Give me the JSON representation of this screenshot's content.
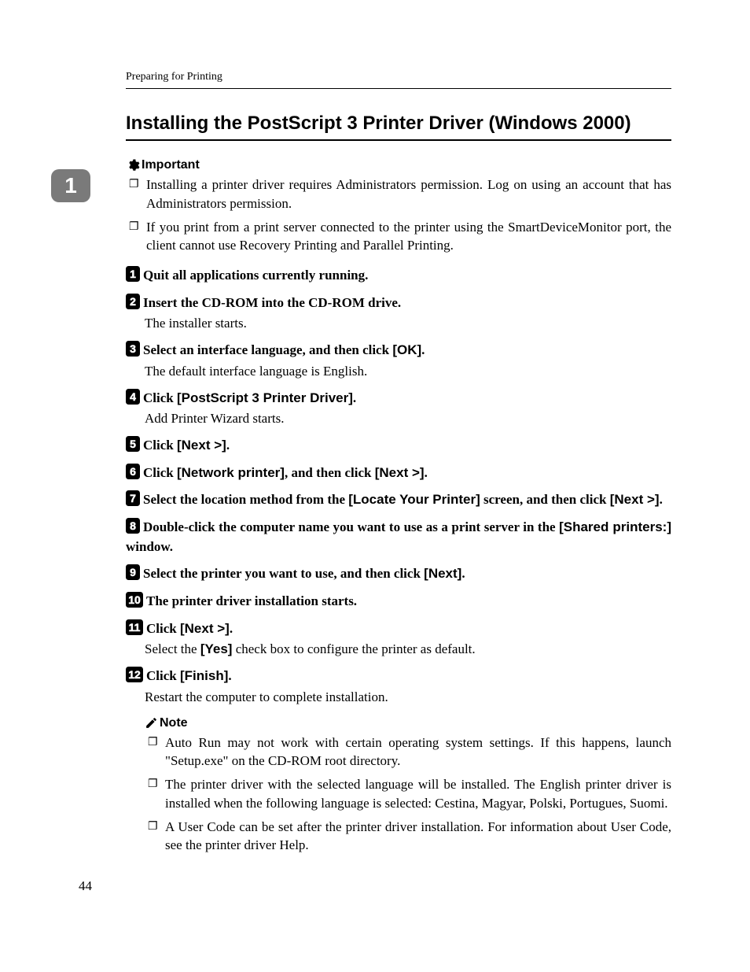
{
  "colors": {
    "tab_bg": "#7a7a7a",
    "tab_fg": "#ffffff",
    "text": "#000000",
    "background": "#ffffff"
  },
  "fonts": {
    "body_family": "Georgia, Times New Roman, serif",
    "ui_family": "Arial, Helvetica, sans-serif",
    "body_size_pt": 12,
    "title_size_pt": 18
  },
  "header": {
    "running": "Preparing for Printing",
    "chapter_number": "1",
    "title": "Installing the PostScript 3 Printer Driver (Windows 2000)"
  },
  "important": {
    "label": "Important",
    "items": [
      "Installing a printer driver requires Administrators permission. Log on using an account that has Administrators permission.",
      "If you print from a print server connected to the printer using the SmartDeviceMonitor port, the client cannot use Recovery Printing and Parallel Printing."
    ]
  },
  "steps": [
    {
      "n": "1",
      "parts": [
        {
          "t": "Quit all applications currently running."
        }
      ]
    },
    {
      "n": "2",
      "parts": [
        {
          "t": "Insert the CD-ROM into the CD-ROM drive."
        }
      ],
      "body": "The installer starts."
    },
    {
      "n": "3",
      "parts": [
        {
          "t": "Select an interface language, and then click "
        },
        {
          "ui": "[OK]"
        },
        {
          "t": "."
        }
      ],
      "body": "The default interface language is English."
    },
    {
      "n": "4",
      "parts": [
        {
          "t": "Click "
        },
        {
          "ui": "[PostScript 3 Printer Driver]"
        },
        {
          "t": "."
        }
      ],
      "body": "Add Printer Wizard starts."
    },
    {
      "n": "5",
      "parts": [
        {
          "t": "Click "
        },
        {
          "ui": "[Next >]"
        },
        {
          "t": "."
        }
      ]
    },
    {
      "n": "6",
      "parts": [
        {
          "t": "Click "
        },
        {
          "ui": "[Network printer]"
        },
        {
          "t": ", and then click "
        },
        {
          "ui": "[Next >]"
        },
        {
          "t": "."
        }
      ]
    },
    {
      "n": "7",
      "parts": [
        {
          "t": "Select the location method from the "
        },
        {
          "ui": "[Locate Your Printer]"
        },
        {
          "t": " screen, and then click "
        },
        {
          "ui": "[Next >]"
        },
        {
          "t": "."
        }
      ]
    },
    {
      "n": "8",
      "parts": [
        {
          "t": "Double-click the computer name you want to use as a print server in the "
        },
        {
          "ui": "[Shared printers:]"
        },
        {
          "t": " window."
        }
      ]
    },
    {
      "n": "9",
      "parts": [
        {
          "t": "Select the printer you want to use, and then click "
        },
        {
          "ui": "[Next]"
        },
        {
          "t": "."
        }
      ]
    },
    {
      "n": "10",
      "parts": [
        {
          "t": "The printer driver installation starts."
        }
      ]
    },
    {
      "n": "11",
      "parts": [
        {
          "t": "Click "
        },
        {
          "ui": "[Next >]"
        },
        {
          "t": "."
        }
      ],
      "body_parts": [
        {
          "t": "Select the "
        },
        {
          "ui": "[Yes]"
        },
        {
          "t": " check box to configure the printer as default."
        }
      ]
    },
    {
      "n": "12",
      "parts": [
        {
          "t": "Click "
        },
        {
          "ui": "[Finish]"
        },
        {
          "t": "."
        }
      ],
      "body": "Restart the computer to complete installation."
    }
  ],
  "note": {
    "label": "Note",
    "items": [
      "Auto Run may not work with certain operating system settings. If this happens, launch \"Setup.exe\" on the CD-ROM root directory.",
      "The printer driver with the selected language will be installed. The English printer driver is installed when the following language is selected: Cestina, Magyar, Polski, Portugues, Suomi.",
      "A User Code can be set after the printer driver installation. For information about User Code, see the printer driver Help."
    ]
  },
  "page_number": "44"
}
